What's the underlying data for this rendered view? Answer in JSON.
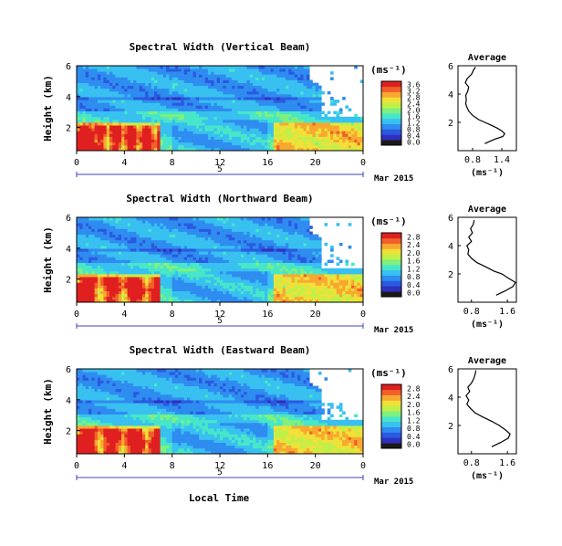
{
  "common": {
    "ylabel": "Height (km)",
    "unit_label": "(ms⁻¹)",
    "date_label": "Mar 2015",
    "day_label": "5",
    "xlabel": "Local Time",
    "x_ticks": [
      "0",
      "4",
      "8",
      "12",
      "16",
      "20",
      "0"
    ],
    "y_ticks": [
      "6",
      "4",
      "2"
    ],
    "avg_title": "Average",
    "avg_y_ticks": [
      "6",
      "4",
      "2"
    ]
  },
  "colors": {
    "colormap": [
      "#1a1a1a",
      "#3030c0",
      "#2a5ae0",
      "#2f8cf0",
      "#38c0f0",
      "#48e6c8",
      "#7ef07e",
      "#c0f048",
      "#f0e038",
      "#f8a830",
      "#f06028",
      "#e02020"
    ]
  },
  "chart_data": [
    {
      "type": "heatmap",
      "title": "Spectral Width (Vertical Beam)",
      "xlabel": "",
      "ylabel": "Height (km)",
      "xlim": [
        0,
        24
      ],
      "ylim": [
        0.5,
        6
      ],
      "colorbar_ticks": [
        "3.6",
        "3.2",
        "2.8",
        "2.4",
        "2.0",
        "1.6",
        "1.2",
        "0.8",
        "0.4",
        "0.0"
      ],
      "colorbar_range": [
        0,
        3.6
      ],
      "average_profile": {
        "title": "Average",
        "x_ticks": [
          "0.8",
          "1.4"
        ],
        "xlim": [
          0.5,
          1.7
        ],
        "ylim": [
          0,
          6
        ],
        "height_km": [
          0.5,
          0.8,
          1.0,
          1.2,
          1.4,
          1.6,
          1.8,
          2.0,
          2.2,
          2.5,
          2.8,
          3.1,
          3.3,
          3.6,
          3.9,
          4.2,
          4.5,
          4.8,
          5.1,
          5.4,
          5.7,
          5.9
        ],
        "width_ms": [
          1.05,
          1.25,
          1.42,
          1.46,
          1.4,
          1.3,
          1.18,
          1.05,
          0.92,
          0.8,
          0.72,
          0.68,
          0.66,
          0.67,
          0.66,
          0.7,
          0.72,
          0.65,
          0.69,
          0.78,
          0.82,
          0.86
        ]
      }
    },
    {
      "type": "heatmap",
      "title": "Spectral Width (Northward Beam)",
      "xlabel": "",
      "ylabel": "Height (km)",
      "xlim": [
        0,
        24
      ],
      "ylim": [
        0.5,
        6
      ],
      "colorbar_ticks": [
        "2.8",
        "2.4",
        "2.0",
        "1.6",
        "1.2",
        "0.8",
        "0.4",
        "0.0"
      ],
      "colorbar_range": [
        0,
        2.8
      ],
      "average_profile": {
        "title": "Average",
        "x_ticks": [
          "0.8",
          "1.6"
        ],
        "xlim": [
          0.5,
          1.8
        ],
        "ylim": [
          0,
          6
        ],
        "height_km": [
          0.5,
          0.8,
          1.1,
          1.4,
          1.7,
          2.0,
          2.2,
          2.5,
          2.8,
          3.1,
          3.4,
          3.7,
          4.0,
          4.3,
          4.6,
          4.9,
          5.2,
          5.5,
          5.8
        ],
        "width_ms": [
          1.35,
          1.55,
          1.72,
          1.78,
          1.62,
          1.48,
          1.3,
          1.12,
          0.92,
          0.8,
          0.72,
          0.74,
          0.7,
          0.8,
          0.74,
          0.82,
          0.78,
          0.84,
          0.86
        ]
      }
    },
    {
      "type": "heatmap",
      "title": "Spectral Width (Eastward Beam)",
      "xlabel": "Local Time",
      "ylabel": "Height (km)",
      "xlim": [
        0,
        24
      ],
      "ylim": [
        0.5,
        6
      ],
      "colorbar_ticks": [
        "2.8",
        "2.4",
        "2.0",
        "1.6",
        "1.2",
        "0.8",
        "0.4",
        "0.0"
      ],
      "colorbar_range": [
        0,
        2.8
      ],
      "average_profile": {
        "title": "Average",
        "x_ticks": [
          "0.8",
          "1.6"
        ],
        "xlim": [
          0.5,
          1.8
        ],
        "ylim": [
          0,
          6
        ],
        "height_km": [
          0.5,
          0.8,
          1.1,
          1.4,
          1.7,
          2.0,
          2.3,
          2.6,
          2.9,
          3.2,
          3.5,
          3.8,
          4.1,
          4.4,
          4.7,
          5.0,
          5.3,
          5.6,
          5.9
        ],
        "width_ms": [
          1.25,
          1.45,
          1.62,
          1.66,
          1.55,
          1.42,
          1.25,
          1.05,
          0.88,
          0.78,
          0.7,
          0.74,
          0.68,
          0.76,
          0.72,
          0.8,
          0.85,
          0.88,
          0.9
        ]
      }
    }
  ]
}
